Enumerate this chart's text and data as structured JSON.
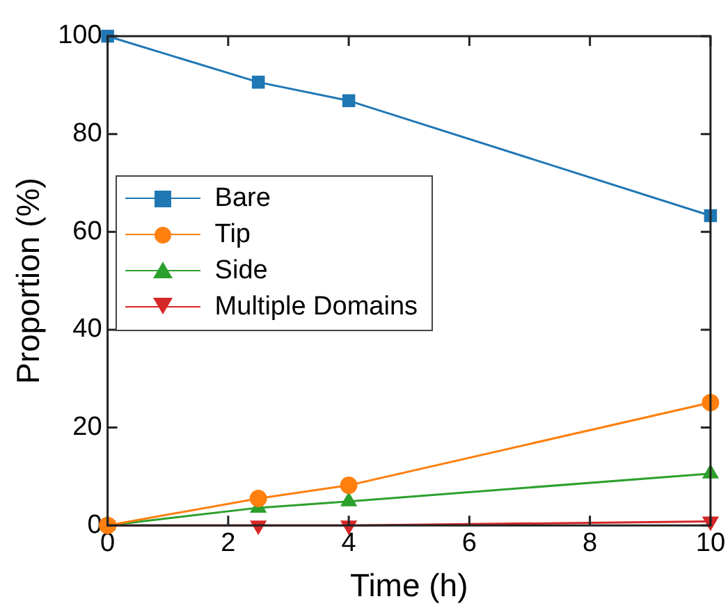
{
  "chart_data": {
    "type": "line",
    "xlabel": "Time (h)",
    "ylabel": "Proportion (%)",
    "x": [
      0,
      2.5,
      4,
      10
    ],
    "series": [
      {
        "name": "Bare",
        "color": "#1f77b4",
        "marker": "square",
        "values": [
          100,
          90.6,
          86.8,
          63.3
        ]
      },
      {
        "name": "Tip",
        "color": "#ff7f0e",
        "marker": "circle",
        "values": [
          0,
          5.5,
          8.2,
          25.1
        ]
      },
      {
        "name": "Side",
        "color": "#2ca02c",
        "marker": "triangle",
        "values": [
          0,
          3.6,
          4.9,
          10.6
        ]
      },
      {
        "name": "Multiple Domains",
        "color": "#d62728",
        "marker": "triangle-down",
        "values": [
          0,
          0,
          0,
          0.8
        ]
      }
    ],
    "xlim": [
      0,
      10
    ],
    "xticks": [
      0,
      2,
      4,
      6,
      8,
      10
    ],
    "ylim": [
      0,
      100
    ],
    "yticks": [
      0,
      20,
      40,
      60,
      80,
      100
    ],
    "grid": false,
    "legend": "left",
    "line_style": "solid"
  }
}
